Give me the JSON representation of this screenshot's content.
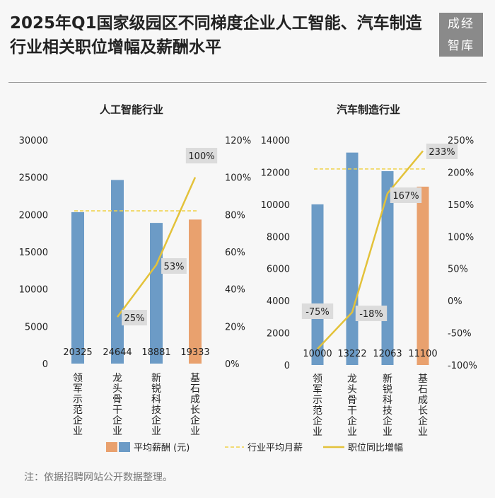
{
  "title": "2025年Q1国家级园区不同梯度企业人工智能、汽车制造行业相关职位增幅及薪酬水平",
  "logo": {
    "line1": "成经",
    "line2": "智库"
  },
  "note": "注：依据招聘网站公开数据整理。",
  "colors": {
    "blue": "#6c9bc6",
    "orange": "#e9a16e",
    "line": "#e3c23a",
    "avg": "#f0d24a"
  },
  "legend": {
    "salary": "平均薪酬 (元)",
    "avg": "行业平均月薪",
    "growth": "职位同比增幅"
  },
  "chart_data": [
    {
      "type": "bar",
      "title": "人工智能行业",
      "categories": [
        "领军示范企业",
        "龙头骨干企业",
        "新锐科技企业",
        "基石成长企业"
      ],
      "series": [
        {
          "name": "平均薪酬 (元)",
          "values": [
            20325,
            24644,
            18881,
            19333
          ],
          "colors": [
            "#6c9bc6",
            "#6c9bc6",
            "#6c9bc6",
            "#e9a16e"
          ]
        },
        {
          "name": "职位同比增幅",
          "type": "line",
          "axis": "right",
          "x": [
            1,
            2,
            3
          ],
          "values": [
            25,
            53,
            100
          ],
          "labels": [
            "25%",
            "53%",
            "100%"
          ]
        },
        {
          "name": "行业平均月薪",
          "type": "reference",
          "value": 20500
        }
      ],
      "ylim": [
        0,
        30000
      ],
      "yticks": [
        "0",
        "5000",
        "10000",
        "15000",
        "20000",
        "25000",
        "30000"
      ],
      "y2lim": [
        0,
        120
      ],
      "y2ticks": [
        "0%",
        "20%",
        "40%",
        "60%",
        "80%",
        "100%",
        "120%"
      ],
      "bar_labels": [
        "20325",
        "24644",
        "18881",
        "19333"
      ]
    },
    {
      "type": "bar",
      "title": "汽车制造行业",
      "categories": [
        "领军示范企业",
        "龙头骨干企业",
        "新锐科技企业",
        "基石成长企业"
      ],
      "series": [
        {
          "name": "平均薪酬 (元)",
          "values": [
            10000,
            13222,
            12063,
            11100
          ],
          "colors": [
            "#6c9bc6",
            "#6c9bc6",
            "#6c9bc6",
            "#e9a16e"
          ]
        },
        {
          "name": "职位同比增幅",
          "type": "line",
          "axis": "right",
          "x": [
            0,
            1,
            2,
            3
          ],
          "values": [
            -75,
            -18,
            167,
            233
          ],
          "labels": [
            "-75%",
            "-18%",
            "167%",
            "233%"
          ]
        },
        {
          "name": "行业平均月薪",
          "type": "reference",
          "value": 12200
        }
      ],
      "ylim": [
        0,
        14000
      ],
      "yticks": [
        "0",
        "2000",
        "4000",
        "6000",
        "8000",
        "10000",
        "12000",
        "14000"
      ],
      "y2lim": [
        -100,
        250
      ],
      "y2ticks": [
        "-100%",
        "-50%",
        "0%",
        "50%",
        "100%",
        "150%",
        "200%",
        "250%"
      ],
      "bar_labels": [
        "10000",
        "13222",
        "12063",
        "11100"
      ]
    }
  ]
}
